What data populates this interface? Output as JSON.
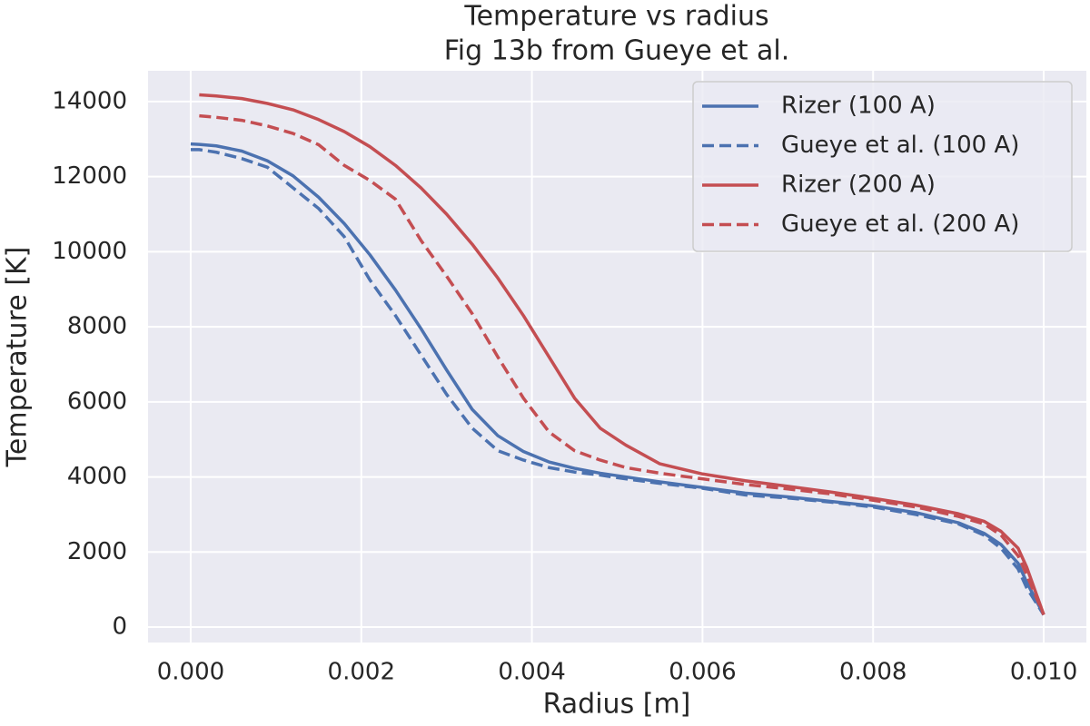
{
  "chart_data": {
    "type": "line",
    "title": "Temperature vs radius",
    "subtitle": "Fig 13b from Gueye et al.",
    "x_label": "Radius [m]",
    "y_label": "Temperature [K]",
    "x": [
      0,
      0.0001,
      0.0003,
      0.0006,
      0.0009,
      0.0012,
      0.0015,
      0.0018,
      0.0021,
      0.0024,
      0.0027,
      0.003,
      0.0033,
      0.0036,
      0.0039,
      0.0042,
      0.0045,
      0.0048,
      0.0051,
      0.0055,
      0.006,
      0.0065,
      0.007,
      0.0075,
      0.008,
      0.0085,
      0.009,
      0.0093,
      0.0095,
      0.0097,
      0.0098,
      0.01
    ],
    "series": [
      {
        "name": "Rizer (100 A)",
        "color": "#4c72b0",
        "linestyle": "solid",
        "values": [
          12870,
          12860,
          12820,
          12680,
          12420,
          12020,
          11450,
          10750,
          9920,
          8980,
          7950,
          6850,
          5800,
          5100,
          4680,
          4400,
          4230,
          4100,
          4000,
          3870,
          3720,
          3570,
          3470,
          3350,
          3230,
          3050,
          2780,
          2500,
          2200,
          1700,
          1200,
          330
        ]
      },
      {
        "name": "Gueye et al. (100 A)",
        "color": "#4c72b0",
        "linestyle": "dashed",
        "values": [
          12720,
          12720,
          12650,
          12480,
          12250,
          11700,
          11150,
          10400,
          9250,
          8300,
          7250,
          6200,
          5300,
          4700,
          4450,
          4250,
          4130,
          4050,
          3950,
          3830,
          3700,
          3520,
          3440,
          3330,
          3200,
          3000,
          2750,
          2450,
          2100,
          1550,
          1050,
          330
        ]
      },
      {
        "name": "Rizer (200 A)",
        "color": "#c44e52",
        "linestyle": "solid",
        "values": [
          null,
          14180,
          14150,
          14080,
          13950,
          13780,
          13520,
          13200,
          12800,
          12300,
          11700,
          11000,
          10200,
          9300,
          8300,
          7200,
          6100,
          5300,
          4850,
          4350,
          4080,
          3900,
          3750,
          3600,
          3430,
          3250,
          3020,
          2820,
          2550,
          2100,
          1600,
          330
        ]
      },
      {
        "name": "Gueye et al. (200 A)",
        "color": "#c44e52",
        "linestyle": "dashed",
        "values": [
          null,
          13620,
          13580,
          13500,
          13350,
          13150,
          12850,
          12300,
          11900,
          11400,
          10300,
          9350,
          8350,
          7200,
          6100,
          5200,
          4700,
          4450,
          4250,
          4100,
          3950,
          3800,
          3680,
          3550,
          3380,
          3200,
          2950,
          2750,
          2450,
          1900,
          1400,
          330
        ]
      }
    ],
    "xlim": [
      -0.0005,
      0.0105
    ],
    "ylim": [
      -410,
      14820
    ],
    "xticks": [
      {
        "value": 0,
        "label": "0.000"
      },
      {
        "value": 0.002,
        "label": "0.002"
      },
      {
        "value": 0.004,
        "label": "0.004"
      },
      {
        "value": 0.006,
        "label": "0.006"
      },
      {
        "value": 0.008,
        "label": "0.008"
      },
      {
        "value": 0.01,
        "label": "0.010"
      }
    ],
    "yticks": [
      0,
      2000,
      4000,
      6000,
      8000,
      10000,
      12000,
      14000
    ],
    "grid": true,
    "legend": "upper right"
  }
}
